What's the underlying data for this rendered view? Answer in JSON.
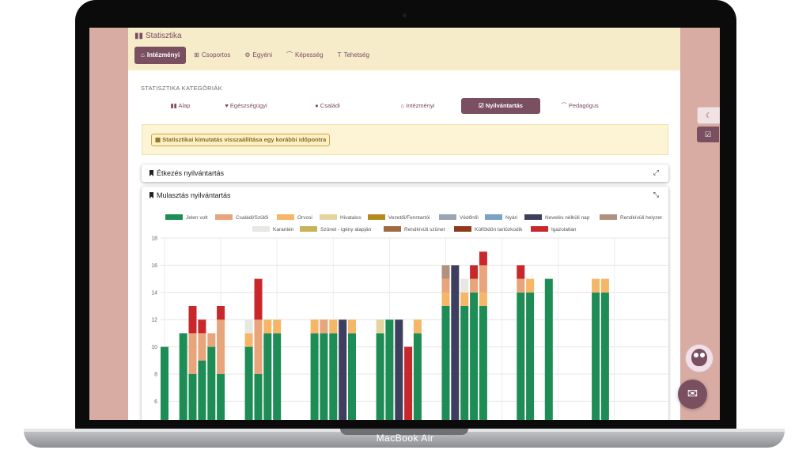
{
  "device": {
    "brand": "MacBook Air"
  },
  "app": {
    "title": "Statisztika"
  },
  "header_tabs": [
    {
      "label": "Intézményi",
      "active": true,
      "icon": "institution-icon"
    },
    {
      "label": "Csoportos",
      "active": false,
      "icon": "grid-icon"
    },
    {
      "label": "Egyéni",
      "active": false,
      "icon": "gear-icon"
    },
    {
      "label": "Képesség",
      "active": false,
      "icon": "graduation-cap-icon"
    },
    {
      "label": "Tehetség",
      "active": false,
      "icon": "trophy-icon"
    }
  ],
  "categories_section": {
    "label": "STATISZTIKA KATEGÓRIÁK",
    "items": [
      {
        "label": "Alap",
        "active": false,
        "icon": "columns-icon"
      },
      {
        "label": "Egészségügyi",
        "active": false,
        "icon": "heart-icon"
      },
      {
        "label": "Családi",
        "active": false,
        "icon": "user-icon"
      },
      {
        "label": "Intézményi",
        "active": false,
        "icon": "institution-icon"
      },
      {
        "label": "Nyilvántartás",
        "active": true,
        "icon": "check-square-icon"
      },
      {
        "label": "Pedagógus",
        "active": false,
        "icon": "graduation-cap-icon"
      }
    ]
  },
  "alert": {
    "button_label": "Statisztikai kimutatás visszaállítása egy korábbi időpontra",
    "icon": "calendar-icon"
  },
  "panels": {
    "etkezes": {
      "title": "Étkezés nyilvántartás",
      "icon": "bookmark-icon",
      "toggle_icon": "expand-icon"
    },
    "mulasztas": {
      "title": "Mulasztás nyilvántartás",
      "icon": "bookmark-icon",
      "toggle_icon": "compress-icon"
    }
  },
  "colors": {
    "accent": "#7a5060",
    "header_bg": "#f6ecc9",
    "page_bg": "#d8aca3"
  },
  "chart_data": {
    "type": "bar",
    "stacked": true,
    "ylim": [
      0,
      18
    ],
    "yticks": [
      6,
      8,
      10,
      12,
      14,
      16,
      18
    ],
    "grid": true,
    "legend_position": "top",
    "series": [
      {
        "name": "Jelen volt",
        "color": "#1e8c55"
      },
      {
        "name": "Családi/Szülői",
        "color": "#e8a47a"
      },
      {
        "name": "Orvosi",
        "color": "#f5b668"
      },
      {
        "name": "Hivatalos",
        "color": "#e6d4a0"
      },
      {
        "name": "Vezetői/Fenntartói",
        "color": "#b38a1e"
      },
      {
        "name": "Védőnői",
        "color": "#9aa6b4"
      },
      {
        "name": "Nyári",
        "color": "#7aa2c4"
      },
      {
        "name": "Nevelés nélküli nap",
        "color": "#3e3f5e"
      },
      {
        "name": "Rendkívüli helyzet",
        "color": "#b29080"
      },
      {
        "name": "Karantén",
        "color": "#e6e8e2"
      },
      {
        "name": "Szünet - igény alapján",
        "color": "#c8b25a"
      },
      {
        "name": "Rendkívüli szünet",
        "color": "#9e6a42"
      },
      {
        "name": "Külföldön tartózkodik",
        "color": "#8e3a18"
      },
      {
        "name": "Igazolatlan",
        "color": "#c8282c"
      }
    ],
    "bars": [
      {
        "slot": 0,
        "segs": [
          [
            0,
            10
          ]
        ]
      },
      {
        "slot": 2,
        "segs": [
          [
            0,
            11
          ]
        ]
      },
      {
        "slot": 3,
        "segs": [
          [
            0,
            8
          ],
          [
            1,
            3
          ],
          [
            13,
            2
          ]
        ]
      },
      {
        "slot": 4,
        "segs": [
          [
            0,
            9
          ],
          [
            1,
            2
          ],
          [
            13,
            1
          ]
        ]
      },
      {
        "slot": 5,
        "segs": [
          [
            0,
            10
          ],
          [
            1,
            1
          ]
        ]
      },
      {
        "slot": 6,
        "segs": [
          [
            0,
            8
          ],
          [
            1,
            4
          ],
          [
            13,
            1
          ]
        ]
      },
      {
        "slot": 9,
        "segs": [
          [
            0,
            10
          ],
          [
            2,
            1
          ],
          [
            9,
            1
          ]
        ]
      },
      {
        "slot": 10,
        "segs": [
          [
            0,
            8
          ],
          [
            1,
            4
          ],
          [
            13,
            3
          ]
        ]
      },
      {
        "slot": 11,
        "segs": [
          [
            0,
            11
          ],
          [
            2,
            1
          ]
        ]
      },
      {
        "slot": 12,
        "segs": [
          [
            0,
            11
          ],
          [
            2,
            1
          ]
        ]
      },
      {
        "slot": 16,
        "segs": [
          [
            0,
            11
          ],
          [
            2,
            1
          ]
        ]
      },
      {
        "slot": 17,
        "segs": [
          [
            0,
            11
          ],
          [
            1,
            1
          ]
        ]
      },
      {
        "slot": 18,
        "segs": [
          [
            0,
            11
          ],
          [
            2,
            1
          ]
        ]
      },
      {
        "slot": 19,
        "segs": [
          [
            7,
            12
          ]
        ]
      },
      {
        "slot": 20,
        "segs": [
          [
            0,
            11
          ],
          [
            2,
            1
          ]
        ]
      },
      {
        "slot": 23,
        "segs": [
          [
            0,
            11
          ],
          [
            3,
            1
          ]
        ]
      },
      {
        "slot": 24,
        "segs": [
          [
            0,
            12
          ]
        ]
      },
      {
        "slot": 25,
        "segs": [
          [
            7,
            12
          ]
        ]
      },
      {
        "slot": 26,
        "segs": [
          [
            2,
            0.5
          ],
          [
            13,
            9.5
          ]
        ]
      },
      {
        "slot": 27,
        "segs": [
          [
            0,
            11
          ],
          [
            2,
            1
          ]
        ]
      },
      {
        "slot": 30,
        "segs": [
          [
            0,
            13
          ],
          [
            2,
            1
          ],
          [
            1,
            1
          ],
          [
            8,
            1
          ]
        ]
      },
      {
        "slot": 31,
        "segs": [
          [
            7,
            16
          ]
        ]
      },
      {
        "slot": 32,
        "segs": [
          [
            0,
            13
          ],
          [
            2,
            1
          ],
          [
            9,
            1
          ]
        ]
      },
      {
        "slot": 33,
        "segs": [
          [
            0,
            14
          ],
          [
            1,
            1
          ],
          [
            13,
            1
          ]
        ]
      },
      {
        "slot": 34,
        "segs": [
          [
            0,
            13
          ],
          [
            2,
            1
          ],
          [
            1,
            2
          ],
          [
            13,
            1
          ]
        ]
      },
      {
        "slot": 38,
        "segs": [
          [
            0,
            14
          ],
          [
            1,
            1
          ],
          [
            13,
            1
          ]
        ]
      },
      {
        "slot": 39,
        "segs": [
          [
            0,
            14
          ],
          [
            2,
            1
          ]
        ]
      },
      {
        "slot": 41,
        "segs": [
          [
            0,
            15
          ]
        ]
      },
      {
        "slot": 46,
        "segs": [
          [
            0,
            14
          ],
          [
            2,
            1
          ]
        ]
      },
      {
        "slot": 47,
        "segs": [
          [
            0,
            14
          ],
          [
            2,
            1
          ]
        ]
      }
    ]
  }
}
